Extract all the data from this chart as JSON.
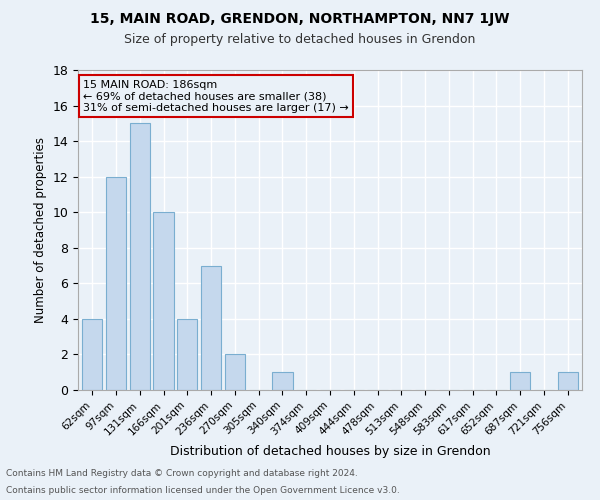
{
  "title": "15, MAIN ROAD, GRENDON, NORTHAMPTON, NN7 1JW",
  "subtitle": "Size of property relative to detached houses in Grendon",
  "xlabel": "Distribution of detached houses by size in Grendon",
  "ylabel": "Number of detached properties",
  "footnote1": "Contains HM Land Registry data © Crown copyright and database right 2024.",
  "footnote2": "Contains public sector information licensed under the Open Government Licence v3.0.",
  "categories": [
    "62sqm",
    "97sqm",
    "131sqm",
    "166sqm",
    "201sqm",
    "236sqm",
    "270sqm",
    "305sqm",
    "340sqm",
    "374sqm",
    "409sqm",
    "444sqm",
    "478sqm",
    "513sqm",
    "548sqm",
    "583sqm",
    "617sqm",
    "652sqm",
    "687sqm",
    "721sqm",
    "756sqm"
  ],
  "values": [
    4,
    12,
    15,
    10,
    4,
    7,
    2,
    0,
    1,
    0,
    0,
    0,
    0,
    0,
    0,
    0,
    0,
    0,
    1,
    0,
    1
  ],
  "bar_color": "#c5d8ed",
  "bar_edge_color": "#7aaed0",
  "background_color": "#eaf1f8",
  "grid_color": "#ffffff",
  "annotation_line1": "15 MAIN ROAD: 186sqm",
  "annotation_line2": "← 69% of detached houses are smaller (38)",
  "annotation_line3": "31% of semi-detached houses are larger (17) →",
  "annotation_box_color": "#cc0000",
  "ylim": [
    0,
    18
  ],
  "yticks": [
    0,
    2,
    4,
    6,
    8,
    10,
    12,
    14,
    16,
    18
  ]
}
